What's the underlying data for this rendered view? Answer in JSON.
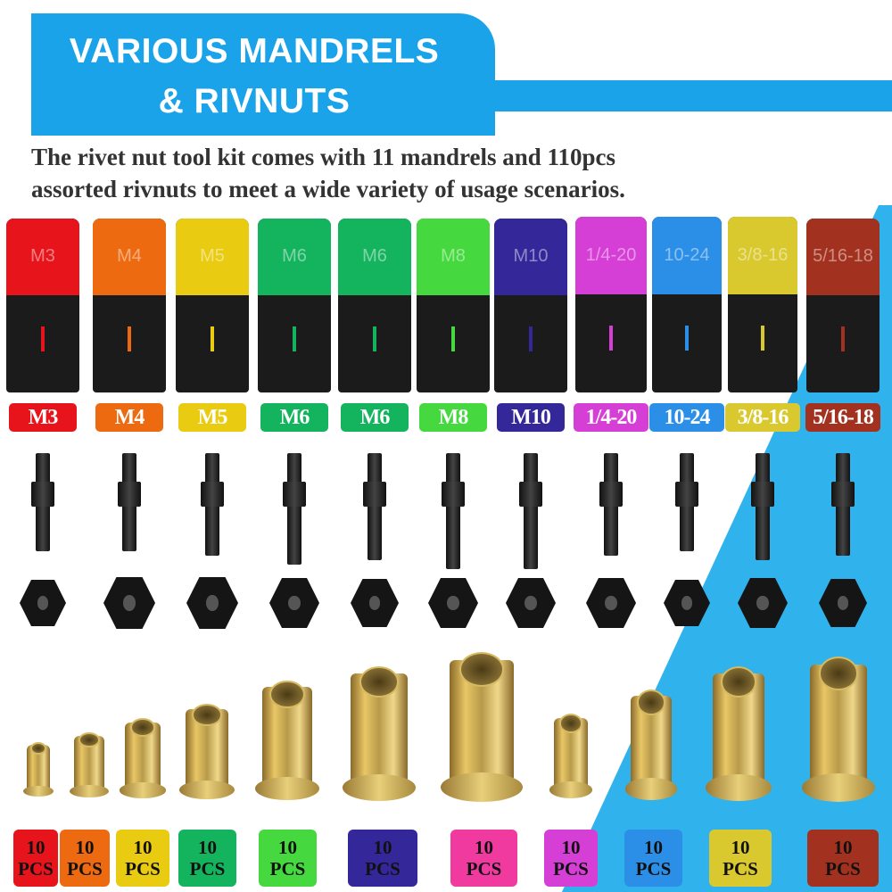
{
  "header": {
    "title_line1": "VARIOUS MANDRELS",
    "title_line2": "& RIVNUTS",
    "description_line1": "The rivet nut tool kit comes with 11 mandrels and 110pcs",
    "description_line2": "assorted rivnuts to meet a wide variety of usage scenarios."
  },
  "colors": {
    "header_blue": "#1aa3e8",
    "background_blue": "#30b2ec"
  },
  "sizes": [
    {
      "label": "M3",
      "color": "#e8141c"
    },
    {
      "label": "M4",
      "color": "#ee6a10"
    },
    {
      "label": "M5",
      "color": "#e9cc12"
    },
    {
      "label": "M6",
      "color": "#14b35e"
    },
    {
      "label": "M6",
      "color": "#14b35e"
    },
    {
      "label": "M8",
      "color": "#45d93f"
    },
    {
      "label": "M10",
      "color": "#33279a"
    },
    {
      "label": "1/4-20",
      "color": "#d63fd6"
    },
    {
      "label": "10-24",
      "color": "#2b8fe8"
    },
    {
      "label": "3/8-16",
      "color": "#d9c92e"
    },
    {
      "label": "5/16-18",
      "color": "#a2321f"
    }
  ],
  "rivnut_packs": [
    {
      "count": "10",
      "unit": "PCS",
      "color": "#e8141c"
    },
    {
      "count": "10",
      "unit": "PCS",
      "color": "#ee6a10"
    },
    {
      "count": "10",
      "unit": "PCS",
      "color": "#e9cc12"
    },
    {
      "count": "10",
      "unit": "PCS",
      "color": "#14b35e"
    },
    {
      "count": "10",
      "unit": "PCS",
      "color": "#45d93f"
    },
    {
      "count": "10",
      "unit": "PCS",
      "color": "#33279a"
    },
    {
      "count": "10",
      "unit": "PCS",
      "color": "#f03aa0"
    },
    {
      "count": "10",
      "unit": "PCS",
      "color": "#d63fd6"
    },
    {
      "count": "10",
      "unit": "PCS",
      "color": "#2b8fe8"
    },
    {
      "count": "10",
      "unit": "PCS",
      "color": "#d9c92e"
    },
    {
      "count": "10",
      "unit": "PCS",
      "color": "#a2321f"
    }
  ]
}
